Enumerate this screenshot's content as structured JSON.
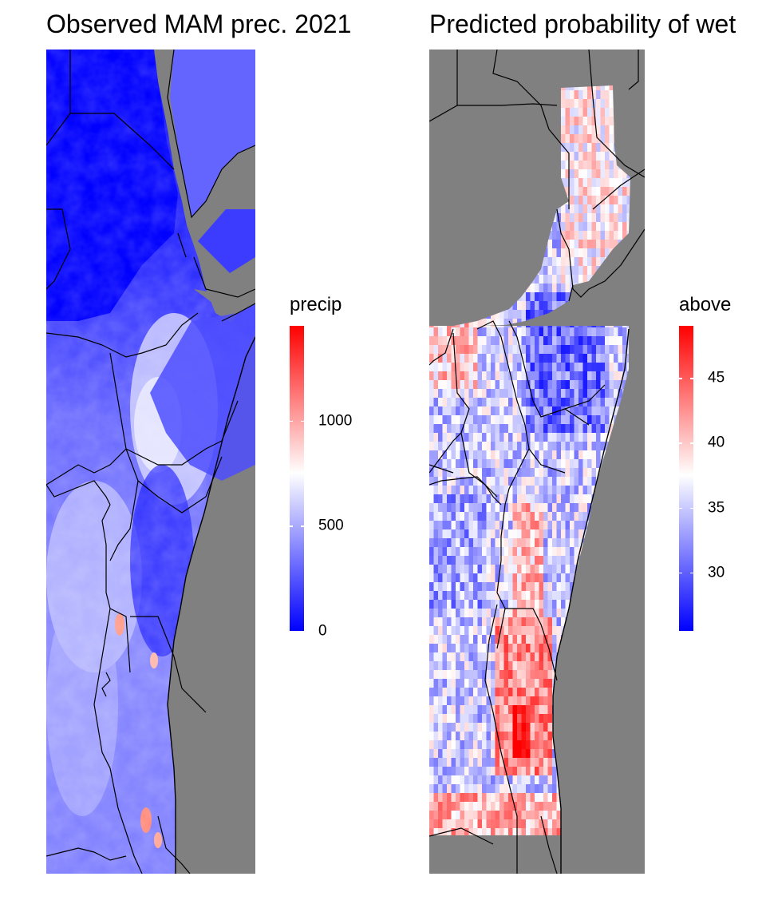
{
  "panels": [
    {
      "title": "Observed MAM prec. 2021",
      "legend": {
        "title": "precip",
        "ticks": [
          "0",
          "500",
          "1000"
        ],
        "tick_values": [
          0,
          500,
          1000
        ],
        "range": [
          0,
          1450
        ],
        "colors": {
          "low": "#0000ff",
          "mid": "#ffffff",
          "high": "#ff0000"
        }
      }
    },
    {
      "title": "Predicted probability of wet",
      "legend": {
        "title": "above",
        "ticks": [
          "30",
          "35",
          "40",
          "45"
        ],
        "tick_values": [
          30,
          35,
          40,
          45
        ],
        "range": [
          25.5,
          49
        ],
        "colors": {
          "low": "#0000ff",
          "mid": "#ffffff",
          "high": "#ff0000"
        }
      }
    }
  ],
  "colors": {
    "land_mask": "#808080",
    "borders": "#000000"
  }
}
